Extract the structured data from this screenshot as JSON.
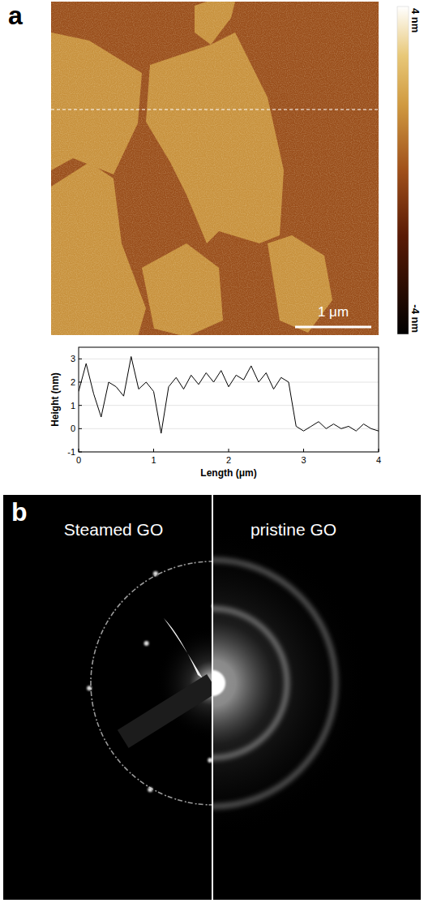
{
  "panel_a": {
    "letter": "a",
    "scale_bar": "1 μm",
    "colorbar": {
      "range": [
        -4,
        4
      ],
      "ticks": [
        {
          "value": 4,
          "label": "4 nm"
        },
        {
          "value": -4,
          "label": "-4 nm"
        }
      ]
    }
  },
  "chart_data": {
    "type": "line",
    "xlabel": "Length (μm)",
    "ylabel": "Height (nm)",
    "x": [
      0,
      0.1,
      0.2,
      0.3,
      0.4,
      0.5,
      0.6,
      0.7,
      0.8,
      0.9,
      1.0,
      1.1,
      1.2,
      1.3,
      1.4,
      1.5,
      1.6,
      1.7,
      1.8,
      1.9,
      2.0,
      2.1,
      2.2,
      2.3,
      2.4,
      2.5,
      2.6,
      2.7,
      2.8,
      2.9,
      3.0,
      3.1,
      3.2,
      3.3,
      3.4,
      3.5,
      3.6,
      3.7,
      3.8,
      3.9,
      4.0
    ],
    "values": [
      1.6,
      2.8,
      1.5,
      0.5,
      2.0,
      1.8,
      1.4,
      3.1,
      1.7,
      2.0,
      1.6,
      -0.2,
      1.8,
      2.2,
      1.7,
      2.3,
      1.9,
      2.4,
      2.0,
      2.5,
      1.8,
      2.3,
      2.1,
      2.7,
      2.0,
      2.4,
      1.7,
      2.2,
      2.0,
      0.1,
      -0.1,
      0.1,
      0.3,
      0.0,
      0.2,
      0.0,
      0.1,
      -0.1,
      0.2,
      0.0,
      -0.1
    ],
    "xlim": [
      0,
      4
    ],
    "ylim": [
      -1,
      3.5
    ],
    "xticks": [
      0,
      1,
      2,
      3,
      4
    ],
    "yticks": [
      -1,
      0,
      1,
      2,
      3
    ],
    "color": "#000000",
    "grid": true
  },
  "panel_b": {
    "letter": "b",
    "left_label": "Steamed GO",
    "right_label": "pristine GO"
  }
}
